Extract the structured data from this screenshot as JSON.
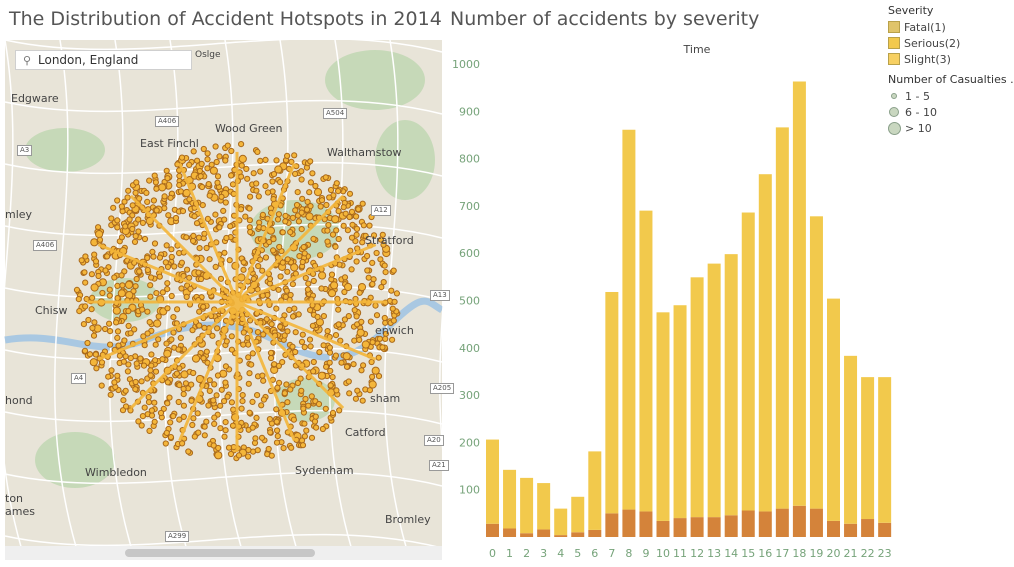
{
  "map": {
    "title": "The Distribution of Accident Hotspots in 2014",
    "search_value": "London, England",
    "search_icon": "search-icon",
    "places": [
      "Oslge",
      "Edgware",
      "Wood Green",
      "East Finchl",
      "Walthamstow",
      "mley",
      "Stratford",
      "Chisw",
      "enwich",
      "hond",
      "sham",
      "Catford",
      "Wimbledon",
      "Sydenham",
      "ton",
      "ames",
      "Bromley"
    ],
    "roads": [
      "A406",
      "A504",
      "A406",
      "A12",
      "A13",
      "A205",
      "A20",
      "A21",
      "A299",
      "A3",
      "A4"
    ],
    "colors": {
      "background": "#e8e4d8",
      "park": "#c6d9b8",
      "water": "#a9c8e2",
      "point_fill": "#f4b63a",
      "point_stroke": "#a9691b"
    }
  },
  "legend": {
    "severity_title": "Severity",
    "severity_items": [
      {
        "label": "Fatal(1)",
        "color": "#e0c46a"
      },
      {
        "label": "Serious(2)",
        "color": "#f2c94c"
      },
      {
        "label": "Slight(3)",
        "color": "#f7d062"
      }
    ],
    "casualties_title": "Number of Casualties .",
    "casualty_items": [
      "1 - 5",
      "6 - 10",
      "> 10"
    ]
  },
  "chart_data": {
    "type": "bar",
    "title": "Number of accidents by severity",
    "xlabel": "Time",
    "ylabel": "",
    "ylim": [
      0,
      1000
    ],
    "yticks": [
      100,
      200,
      300,
      400,
      500,
      600,
      700,
      800,
      900,
      1000
    ],
    "categories": [
      "0",
      "1",
      "2",
      "3",
      "4",
      "5",
      "6",
      "7",
      "8",
      "9",
      "10",
      "11",
      "12",
      "13",
      "14",
      "15",
      "16",
      "17",
      "18",
      "19",
      "20",
      "21",
      "22",
      "23"
    ],
    "series": [
      {
        "values": [
          28,
          18,
          8,
          16,
          4,
          10,
          15,
          50,
          58,
          54,
          34,
          40,
          42,
          42,
          46,
          56,
          54,
          60,
          66,
          60,
          34,
          28,
          38,
          30
        ],
        "color": "#d4833a"
      },
      {
        "values": [
          178,
          124,
          117,
          98,
          56,
          75,
          166,
          468,
          803,
          636,
          441,
          450,
          507,
          536,
          552,
          630,
          713,
          806,
          897,
          618,
          470,
          355,
          300,
          308
        ],
        "color": "#f2c94c"
      }
    ],
    "colors": {
      "axis_text": "#76a37a",
      "title": "#555555"
    }
  }
}
